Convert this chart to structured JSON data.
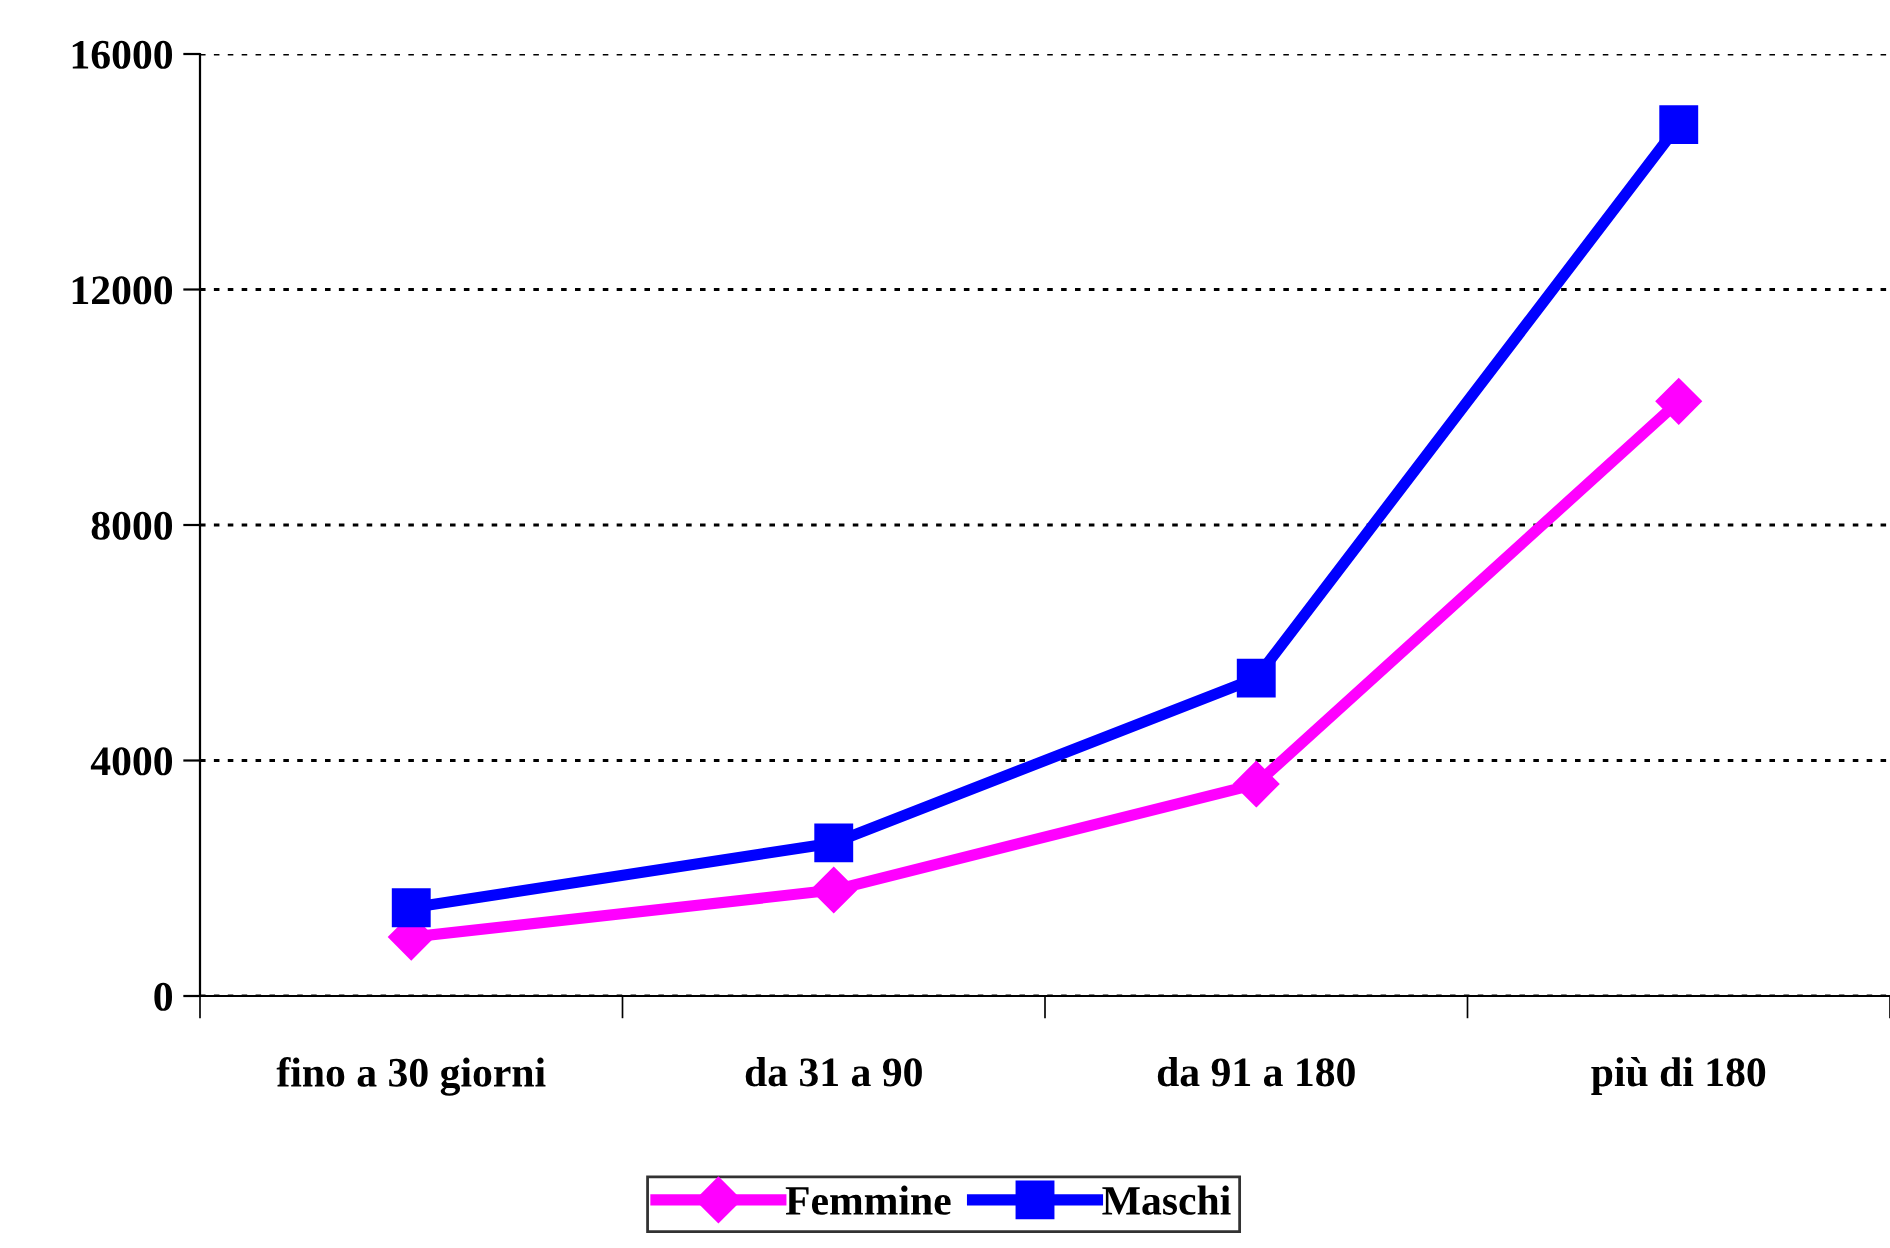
{
  "chart_data": {
    "type": "line",
    "categories": [
      "fino a 30 giorni",
      "da 31 a 90",
      "da 91 a 180",
      "più di 180"
    ],
    "series": [
      {
        "name": "Femmine",
        "color": "#ff00ff",
        "values": [
          1000,
          1800,
          3600,
          10100
        ],
        "marker": "diamond"
      },
      {
        "name": "Maschi",
        "color": "#0000ff",
        "values": [
          1500,
          2600,
          5400,
          14800
        ],
        "marker": "square"
      }
    ],
    "ylim": [
      0,
      16000
    ],
    "yticks": [
      0,
      4000,
      8000,
      12000,
      16000
    ],
    "grid": "y",
    "legend": "bottom",
    "line_style": "solid"
  }
}
